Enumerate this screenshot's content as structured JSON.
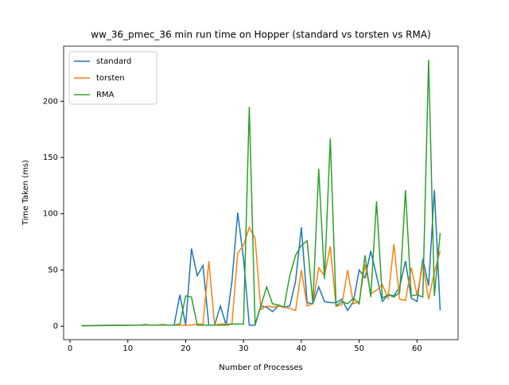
{
  "chart_data": {
    "type": "line",
    "title": "ww_36_pmec_36 min run time on Hopper (standard vs torsten vs RMA)",
    "xlabel": "Number of Processes",
    "ylabel": "Time Taken (ms)",
    "x": [
      2,
      3,
      4,
      5,
      6,
      7,
      8,
      9,
      10,
      11,
      12,
      13,
      14,
      15,
      16,
      17,
      18,
      19,
      20,
      21,
      22,
      23,
      24,
      25,
      26,
      27,
      28,
      29,
      30,
      31,
      32,
      33,
      34,
      35,
      36,
      37,
      38,
      39,
      40,
      41,
      42,
      43,
      44,
      45,
      46,
      47,
      48,
      49,
      50,
      51,
      52,
      53,
      54,
      55,
      56,
      57,
      58,
      59,
      60,
      61,
      62,
      63,
      64
    ],
    "series": [
      {
        "name": "standard",
        "color": "#1f77b4",
        "values": [
          0.5,
          0.5,
          0.6,
          0.6,
          0.7,
          0.7,
          0.8,
          0.8,
          0.9,
          0.9,
          1,
          1,
          1,
          1,
          1,
          1,
          1,
          28,
          1,
          69,
          45,
          54,
          1,
          1,
          18,
          1,
          40,
          101,
          60,
          1,
          1,
          18,
          17,
          13,
          18,
          17,
          18,
          40,
          88,
          21,
          20,
          35,
          22,
          21,
          21,
          24,
          14,
          22,
          50,
          43,
          67,
          45,
          22,
          28,
          27,
          35,
          58,
          25,
          22,
          60,
          36,
          121,
          14
        ]
      },
      {
        "name": "torsten",
        "color": "#ff7f0e",
        "values": [
          0.5,
          0.6,
          0.6,
          0.7,
          0.7,
          0.8,
          0.8,
          0.9,
          0.9,
          1,
          1,
          1,
          1,
          1,
          1,
          1,
          1,
          1,
          1,
          1,
          2,
          2,
          58,
          1,
          2,
          2,
          2,
          65,
          72,
          88,
          78,
          15,
          18,
          17,
          18,
          17,
          16,
          14,
          50,
          18,
          20,
          52,
          45,
          71,
          18,
          19,
          50,
          20,
          22,
          55,
          29,
          32,
          37,
          25,
          73,
          24,
          23,
          52,
          28,
          55,
          24,
          48,
          67
        ]
      },
      {
        "name": "RMA",
        "color": "#2ca02c",
        "values": [
          0.5,
          0.6,
          0.6,
          0.7,
          0.7,
          0.8,
          0.8,
          0.9,
          0.9,
          1,
          1,
          1.5,
          1,
          1,
          1.5,
          1,
          1,
          2,
          27,
          26,
          1,
          1,
          1,
          1,
          1,
          1,
          2,
          2,
          2,
          195,
          2,
          18,
          35,
          20,
          19,
          17,
          45,
          63,
          72,
          76,
          20,
          140,
          42,
          167,
          18,
          22,
          20,
          25,
          20,
          63,
          26,
          111,
          25,
          28,
          26,
          30,
          121,
          27,
          28,
          26,
          237,
          27,
          83
        ]
      }
    ],
    "xlim": [
      -1.1,
      67.1
    ],
    "ylim": [
      -11.9,
      249
    ],
    "xticks": [
      0,
      10,
      20,
      30,
      40,
      50,
      60
    ],
    "yticks": [
      0,
      50,
      100,
      150,
      200
    ],
    "legend": "upper left"
  }
}
